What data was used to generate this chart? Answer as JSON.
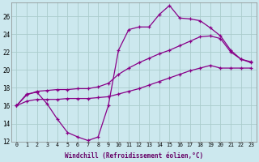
{
  "xlabel": "Windchill (Refroidissement éolien,°C)",
  "bg_color": "#cce8ee",
  "grid_color": "#aacccc",
  "line_color": "#880088",
  "xmin": -0.5,
  "xmax": 23.5,
  "ymin": 12,
  "ymax": 27.5,
  "yticks": [
    12,
    14,
    16,
    18,
    20,
    22,
    24,
    26
  ],
  "xticks": [
    0,
    1,
    2,
    3,
    4,
    5,
    6,
    7,
    8,
    9,
    10,
    11,
    12,
    13,
    14,
    15,
    16,
    17,
    18,
    19,
    20,
    21,
    22,
    23
  ],
  "line1_x": [
    0,
    1,
    2,
    3,
    4,
    5,
    6,
    7,
    8,
    9,
    10,
    11,
    12,
    13,
    14,
    15,
    16,
    17,
    18,
    19,
    20,
    21,
    22,
    23
  ],
  "line1_y": [
    16.0,
    17.3,
    17.5,
    16.2,
    14.5,
    13.0,
    12.5,
    12.1,
    12.5,
    16.0,
    22.2,
    24.5,
    24.8,
    24.8,
    26.2,
    27.2,
    25.8,
    25.7,
    25.5,
    24.7,
    23.8,
    22.2,
    21.2,
    20.8
  ],
  "line2_x": [
    0,
    1,
    2,
    3,
    4,
    5,
    6,
    7,
    8,
    9,
    10,
    11,
    12,
    13,
    14,
    15,
    16,
    17,
    18,
    19,
    20,
    21,
    22,
    23
  ],
  "line2_y": [
    16.0,
    17.2,
    17.6,
    17.7,
    17.8,
    17.8,
    17.9,
    17.9,
    18.1,
    18.5,
    19.5,
    20.2,
    20.8,
    21.3,
    21.8,
    22.2,
    22.7,
    23.2,
    23.7,
    23.8,
    23.5,
    22.0,
    21.2,
    20.9
  ],
  "line3_x": [
    0,
    1,
    2,
    3,
    4,
    5,
    6,
    7,
    8,
    9,
    10,
    11,
    12,
    13,
    14,
    15,
    16,
    17,
    18,
    19,
    20,
    21,
    22,
    23
  ],
  "line3_y": [
    16.0,
    16.5,
    16.7,
    16.7,
    16.7,
    16.8,
    16.8,
    16.8,
    16.9,
    17.0,
    17.3,
    17.6,
    17.9,
    18.3,
    18.7,
    19.1,
    19.5,
    19.9,
    20.2,
    20.5,
    20.2,
    20.2,
    20.2,
    20.2
  ]
}
